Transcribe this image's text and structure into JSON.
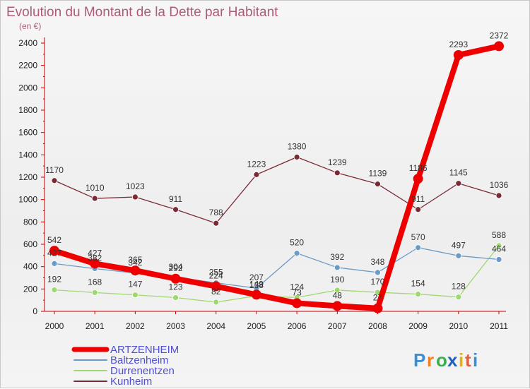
{
  "chart_data": {
    "type": "line",
    "title": "Evolution du Montant de la Dette par Habitant",
    "subtitle": "(en €)",
    "x": [
      "2000",
      "2001",
      "2002",
      "2003",
      "2004",
      "2005",
      "2006",
      "2007",
      "2008",
      "2009",
      "2010",
      "2011"
    ],
    "ylim": [
      0,
      2400
    ],
    "yticks": [
      0,
      200,
      400,
      600,
      800,
      1000,
      1200,
      1400,
      1600,
      1800,
      2000,
      2200,
      2400
    ],
    "grid": false,
    "legend_position": "bottom-left",
    "series": [
      {
        "name": "Kunheim",
        "color": "#7a2a35",
        "width": 1.3,
        "marker": 4,
        "values": [
          1170,
          1010,
          1023,
          911,
          788,
          1223,
          1380,
          1239,
          1139,
          911,
          1145,
          1036
        ],
        "labels": [
          "1170",
          "1010",
          "1023",
          "911",
          "788",
          "1223",
          "1380",
          "1239",
          "1139",
          "911",
          "1145",
          "1036"
        ]
      },
      {
        "name": "Durrenentzen",
        "color": "#9ed870",
        "width": 1.3,
        "marker": 4,
        "values": [
          192,
          168,
          147,
          123,
          82,
          138,
          124,
          190,
          170,
          154,
          128,
          588
        ],
        "labels": [
          "192",
          "168",
          "147",
          "123",
          "82",
          "138",
          "124",
          "190",
          "170",
          "154",
          "128",
          "588"
        ]
      },
      {
        "name": "Baltzenheim",
        "color": "#6a9ac8",
        "width": 1.3,
        "marker": 4,
        "values": [
          427,
          382,
          342,
          304,
          255,
          207,
          520,
          392,
          348,
          570,
          497,
          464
        ],
        "labels": [
          "427",
          "382",
          "342",
          "304",
          "255",
          "207",
          "520",
          "392",
          "348",
          "570",
          "497",
          "464"
        ]
      },
      {
        "name": "ARTZENHEIM",
        "color": "#ee0000",
        "width": 8,
        "marker": 7,
        "values": [
          542,
          427,
          365,
          292,
          224,
          149,
          73,
          48,
          27,
          1186,
          2293,
          2372
        ],
        "labels": [
          "542",
          "427",
          "365",
          "292",
          "224",
          "149",
          "73",
          "48",
          "27",
          "1186",
          "2293",
          "2372"
        ]
      }
    ],
    "legend_order": [
      "ARTZENHEIM",
      "Baltzenheim",
      "Durrenentzen",
      "Kunheim"
    ]
  },
  "brand": {
    "letters": [
      "P",
      "r",
      "o",
      "x",
      "i",
      "t",
      "i"
    ],
    "colors": [
      "#3a8ed8",
      "#f08020",
      "#3ab050",
      "#2060c0",
      "#e8b000",
      "#e06040",
      "#3a8ed8"
    ]
  }
}
